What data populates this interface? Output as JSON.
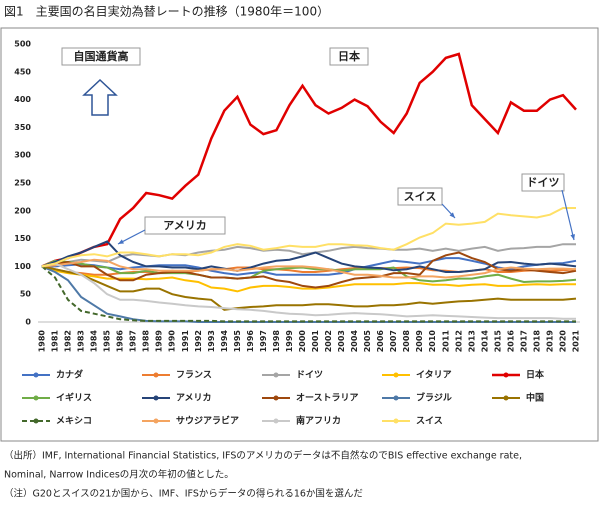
{
  "chart_data": {
    "type": "line",
    "title": "図1　主要国の名目実効為替レートの推移（1980年＝100）",
    "categories": [
      "1980",
      "1981",
      "1982",
      "1983",
      "1984",
      "1985",
      "1986",
      "1987",
      "1988",
      "1989",
      "1990",
      "1991",
      "1992",
      "1993",
      "1994",
      "1995",
      "1996",
      "1997",
      "1998",
      "1999",
      "2000",
      "2001",
      "2002",
      "2003",
      "2004",
      "2005",
      "2006",
      "2007",
      "2008",
      "2009",
      "2010",
      "2011",
      "2012",
      "2013",
      "2014",
      "2015",
      "2016",
      "2017",
      "2018",
      "2019",
      "2020",
      "2021"
    ],
    "ylim": [
      0,
      500
    ],
    "yticks": [
      0,
      50,
      100,
      150,
      200,
      250,
      300,
      350,
      400,
      450,
      500
    ],
    "grid": false,
    "series": [
      {
        "name": "カナダ",
        "color": "#4472c4",
        "values": [
          100,
          100,
          102,
          104,
          102,
          98,
          95,
          98,
          100,
          102,
          102,
          102,
          98,
          92,
          88,
          85,
          88,
          90,
          85,
          85,
          85,
          85,
          85,
          88,
          95,
          100,
          105,
          110,
          108,
          105,
          110,
          115,
          115,
          110,
          105,
          98,
          95,
          100,
          103,
          105,
          106,
          110
        ]
      },
      {
        "name": "フランス",
        "color": "#ed7d31",
        "values": [
          100,
          95,
          90,
          88,
          85,
          85,
          88,
          90,
          90,
          88,
          92,
          90,
          92,
          95,
          95,
          98,
          98,
          95,
          95,
          93,
          90,
          90,
          92,
          95,
          97,
          97,
          97,
          97,
          98,
          97,
          93,
          92,
          90,
          92,
          95,
          90,
          90,
          92,
          93,
          92,
          93,
          95
        ]
      },
      {
        "name": "ドイツ",
        "color": "#a5a5a5",
        "values": [
          100,
          102,
          108,
          112,
          110,
          108,
          118,
          122,
          120,
          118,
          122,
          120,
          125,
          128,
          130,
          135,
          133,
          128,
          130,
          128,
          122,
          125,
          128,
          133,
          135,
          133,
          132,
          130,
          130,
          132,
          128,
          132,
          128,
          132,
          135,
          128,
          132,
          133,
          135,
          135,
          140,
          140
        ]
      },
      {
        "name": "イタリア",
        "color": "#ffc000",
        "values": [
          100,
          92,
          88,
          85,
          82,
          78,
          78,
          78,
          77,
          78,
          80,
          75,
          72,
          62,
          60,
          55,
          62,
          65,
          65,
          63,
          60,
          60,
          62,
          65,
          68,
          68,
          68,
          68,
          70,
          70,
          67,
          67,
          65,
          67,
          68,
          65,
          65,
          67,
          68,
          67,
          68,
          68
        ]
      },
      {
        "name": "日本",
        "color": "#e00000",
        "width": 2.5,
        "values": [
          100,
          110,
          115,
          125,
          135,
          140,
          185,
          205,
          232,
          228,
          222,
          245,
          265,
          330,
          380,
          405,
          355,
          338,
          345,
          390,
          425,
          390,
          375,
          385,
          400,
          388,
          360,
          340,
          375,
          430,
          450,
          475,
          482,
          390,
          365,
          340,
          395,
          380,
          380,
          400,
          408,
          382
        ]
      },
      {
        "name": "イギリス",
        "color": "#70ad47",
        "values": [
          100,
          110,
          108,
          105,
          100,
          98,
          88,
          88,
          92,
          88,
          88,
          88,
          85,
          80,
          80,
          78,
          80,
          92,
          95,
          97,
          98,
          95,
          95,
          92,
          95,
          95,
          95,
          98,
          82,
          75,
          73,
          75,
          78,
          78,
          82,
          85,
          78,
          72,
          73,
          73,
          74,
          76
        ]
      },
      {
        "name": "アメリカ",
        "color": "#264478",
        "values": [
          100,
          108,
          118,
          125,
          135,
          145,
          120,
          108,
          100,
          100,
          98,
          98,
          95,
          100,
          96,
          92,
          98,
          105,
          110,
          112,
          118,
          125,
          115,
          105,
          100,
          98,
          97,
          93,
          95,
          100,
          95,
          90,
          90,
          92,
          95,
          107,
          108,
          105,
          103,
          105,
          103,
          100
        ]
      },
      {
        "name": "オーストラリア",
        "color": "#9e480e",
        "values": [
          100,
          105,
          108,
          100,
          100,
          85,
          75,
          75,
          85,
          88,
          90,
          90,
          85,
          80,
          80,
          78,
          80,
          82,
          75,
          72,
          65,
          62,
          65,
          72,
          78,
          80,
          82,
          88,
          88,
          85,
          110,
          120,
          125,
          115,
          108,
          95,
          92,
          95,
          92,
          90,
          88,
          92
        ]
      },
      {
        "name": "ブラジル",
        "color": "#4e79a7",
        "values": [
          100,
          90,
          75,
          45,
          30,
          15,
          10,
          5,
          2,
          1,
          1,
          1,
          0,
          0,
          0,
          0,
          0,
          0,
          0,
          0,
          0,
          0,
          0,
          0,
          0,
          0,
          0,
          0,
          0,
          0,
          0,
          0,
          0,
          0,
          0,
          0,
          0,
          0,
          0,
          0,
          0,
          0
        ]
      },
      {
        "name": "中国",
        "color": "#997300",
        "values": [
          100,
          95,
          90,
          85,
          75,
          65,
          55,
          55,
          60,
          60,
          50,
          45,
          42,
          40,
          22,
          25,
          27,
          28,
          30,
          30,
          30,
          32,
          32,
          30,
          28,
          28,
          30,
          30,
          32,
          35,
          33,
          35,
          37,
          38,
          40,
          42,
          40,
          40,
          40,
          40,
          40,
          42
        ]
      },
      {
        "name": "メキシコ",
        "color": "#43682b",
        "dashed": true,
        "values": [
          100,
          80,
          40,
          20,
          15,
          10,
          5,
          3,
          2,
          2,
          2,
          2,
          2,
          2,
          1,
          1,
          1,
          1,
          1,
          1,
          1,
          1,
          1,
          1,
          1,
          1,
          1,
          1,
          1,
          1,
          1,
          1,
          1,
          1,
          1,
          1,
          1,
          1,
          1,
          1,
          1,
          1
        ]
      },
      {
        "name": "サウジアラビア",
        "color": "#f4a460",
        "values": [
          100,
          102,
          105,
          108,
          112,
          110,
          100,
          95,
          95,
          92,
          92,
          92,
          92,
          95,
          95,
          92,
          95,
          98,
          100,
          100,
          100,
          98,
          95,
          90,
          85,
          85,
          83,
          80,
          80,
          82,
          82,
          80,
          82,
          85,
          88,
          95,
          98,
          96,
          95,
          96,
          96,
          95
        ]
      },
      {
        "name": "南アフリカ",
        "color": "#c9c9c9",
        "values": [
          100,
          105,
          95,
          85,
          70,
          50,
          40,
          40,
          38,
          35,
          33,
          30,
          28,
          27,
          25,
          23,
          22,
          20,
          17,
          15,
          14,
          12,
          13,
          15,
          16,
          15,
          14,
          12,
          10,
          11,
          12,
          11,
          10,
          9,
          8,
          7,
          7,
          7,
          7,
          7,
          6,
          6
        ]
      },
      {
        "name": "スイス",
        "color": "#ffe066",
        "values": [
          100,
          105,
          115,
          120,
          122,
          118,
          125,
          125,
          122,
          118,
          122,
          122,
          120,
          125,
          135,
          140,
          137,
          130,
          133,
          137,
          135,
          135,
          140,
          140,
          138,
          137,
          133,
          130,
          140,
          152,
          160,
          177,
          175,
          177,
          180,
          195,
          192,
          190,
          188,
          193,
          205,
          205
        ]
      }
    ],
    "annotations": [
      "自国通貨高",
      "日本",
      "アメリカ",
      "スイス",
      "ドイツ"
    ],
    "notes": [
      "（出所）IMF, International Financial Statistics, IFSのアメリカのデータは不自然なのでBIS effective exchange rate,",
      "Nominal, Narrow Indicesの月次の年初の値とした。",
      "（注）G20とスイスの21か国から、IMF、IFSからデータの得られる16か国を選んだ"
    ]
  }
}
